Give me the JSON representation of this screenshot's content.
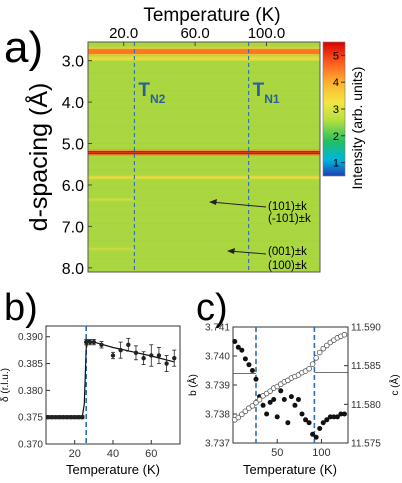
{
  "panel_labels": {
    "a": "a)",
    "b": "b)",
    "c": "c)"
  },
  "chart_data": [
    {
      "type": "heatmap",
      "panel": "a)",
      "title": "",
      "xlabel": "Temperature (K)",
      "ylabel": "d-spacing (Å)",
      "x_ticks": [
        "20.0",
        "60.0",
        "100.0"
      ],
      "x_tick_values": [
        20,
        60,
        100
      ],
      "xlim": [
        0,
        130
      ],
      "y_ticks": [
        "3.0",
        "4.0",
        "5.0",
        "6.0",
        "7.0",
        "8.0"
      ],
      "y_tick_values": [
        3.0,
        4.0,
        5.0,
        6.0,
        7.0,
        8.0
      ],
      "ylim": [
        2.55,
        8.1
      ],
      "colorbar": {
        "label": "Intensity (arb. units)",
        "ticks": [
          "5",
          "4",
          "3",
          "2",
          "1"
        ],
        "tick_values": [
          5,
          4,
          3,
          2,
          1
        ],
        "range": [
          0.5,
          5.5
        ]
      },
      "transition_lines": [
        {
          "x": 26,
          "label": "T",
          "sub": "N2"
        },
        {
          "x": 90,
          "label": "T",
          "sub": "N1"
        }
      ],
      "bands": [
        {
          "d": 2.78,
          "intensity": 3.5,
          "width": 0.12
        },
        {
          "d": 2.95,
          "intensity": 2.6,
          "width": 0.06
        },
        {
          "d": 5.22,
          "intensity": 4.6,
          "width": 0.08
        },
        {
          "d": 5.82,
          "intensity": 2.6,
          "width": 0.05
        },
        {
          "d": 6.35,
          "intensity": 2.3,
          "width": 0.05,
          "x_max": 26
        },
        {
          "d": 7.55,
          "intensity": 2.3,
          "width": 0.05,
          "x_max": 26
        }
      ],
      "background_intensity": 2.1,
      "annotations": [
        {
          "lines": [
            "(101)±k",
            "(-101)±k"
          ],
          "points_to_d": 6.35,
          "points_to_x": 90
        },
        {
          "lines": [
            "(001)±k",
            "(100)±k"
          ],
          "points_to_d": 7.55,
          "points_to_x": 88
        }
      ]
    },
    {
      "type": "scatter",
      "panel": "b)",
      "xlabel": "Temperature (K)",
      "ylabel": "δ (r.l.u.)",
      "xlim": [
        5,
        75
      ],
      "ylim": [
        0.37,
        0.392
      ],
      "x_ticks": [
        "20",
        "40",
        "60"
      ],
      "x_tick_values": [
        20,
        40,
        60
      ],
      "y_ticks": [
        "0.370",
        "0.375",
        "0.380",
        "0.385",
        "0.390"
      ],
      "y_tick_values": [
        0.37,
        0.375,
        0.38,
        0.385,
        0.39
      ],
      "vline_x": 26,
      "series": [
        {
          "x": [
            6,
            8,
            10,
            12,
            14,
            16,
            18,
            20,
            22,
            24,
            26,
            28,
            30,
            34,
            40,
            44,
            48,
            52,
            56,
            60,
            64,
            68,
            72
          ],
          "y": [
            0.375,
            0.375,
            0.375,
            0.375,
            0.375,
            0.375,
            0.375,
            0.375,
            0.375,
            0.375,
            0.389,
            0.389,
            0.389,
            0.3885,
            0.3865,
            0.3875,
            0.3885,
            0.387,
            0.386,
            0.3865,
            0.3865,
            0.385,
            0.386
          ],
          "err": [
            0.0003,
            0.0003,
            0.0003,
            0.0003,
            0.0003,
            0.0003,
            0.0003,
            0.0003,
            0.0003,
            0.0003,
            0.0005,
            0.0005,
            0.0005,
            0.0006,
            0.0006,
            0.0015,
            0.0012,
            0.0013,
            0.0012,
            0.002,
            0.0015,
            0.0015,
            0.0015
          ]
        }
      ],
      "fit": {
        "x": [
          6,
          22,
          24,
          25,
          26,
          27,
          30,
          40,
          50,
          60,
          70,
          72
        ],
        "y": [
          0.3748,
          0.3748,
          0.3752,
          0.3775,
          0.3878,
          0.3893,
          0.389,
          0.388,
          0.3872,
          0.3864,
          0.3855,
          0.3853
        ]
      }
    },
    {
      "type": "scatter",
      "panel": "c)",
      "xlabel": "Temperature (K)",
      "ylabel_left": "b (Å)",
      "ylabel_right": "c (Å)",
      "xlim": [
        0,
        130
      ],
      "ylim_left": [
        3.737,
        3.741
      ],
      "ylim_right": [
        11.575,
        11.59
      ],
      "x_ticks": [
        "50",
        "100"
      ],
      "x_tick_values": [
        50,
        100
      ],
      "y_ticks_left": [
        "3.737",
        "3.738",
        "3.739",
        "3.740",
        "3.741"
      ],
      "y_tick_values_left": [
        3.737,
        3.738,
        3.739,
        3.74,
        3.741
      ],
      "y_ticks_right": [
        "11.575",
        "11.580",
        "11.585",
        "11.590"
      ],
      "y_tick_values_right": [
        11.575,
        11.58,
        11.585,
        11.59
      ],
      "vlines_x": [
        26,
        92
      ],
      "series": [
        {
          "axis": "left",
          "marker": "filled",
          "x": [
            2,
            6,
            10,
            14,
            18,
            22,
            26,
            30,
            34,
            38,
            42,
            46,
            50,
            54,
            58,
            62,
            66,
            70,
            74,
            78,
            82,
            86,
            90,
            94,
            98,
            102,
            106,
            110,
            114,
            118,
            122,
            126
          ],
          "y": [
            3.7405,
            3.7403,
            3.7402,
            3.7399,
            3.7397,
            3.7395,
            3.7392,
            3.7386,
            3.7383,
            3.738,
            3.7384,
            3.7385,
            3.7379,
            3.7388,
            3.7385,
            3.7377,
            3.7386,
            3.7383,
            3.7385,
            3.738,
            3.7378,
            3.7377,
            3.7373,
            3.7372,
            3.7375,
            3.7377,
            3.7378,
            3.7379,
            3.7379,
            3.7379,
            3.738,
            3.738
          ]
        },
        {
          "axis": "right",
          "marker": "open",
          "x": [
            2,
            6,
            10,
            14,
            18,
            22,
            26,
            30,
            34,
            38,
            42,
            46,
            50,
            54,
            58,
            62,
            66,
            70,
            74,
            78,
            82,
            86,
            90,
            94,
            98,
            102,
            106,
            110,
            114,
            118,
            122,
            126
          ],
          "y": [
            11.578,
            11.5783,
            11.5787,
            11.5791,
            11.5795,
            11.5798,
            11.5802,
            11.5806,
            11.5811,
            11.5814,
            11.5817,
            11.5821,
            11.5823,
            11.5826,
            11.5829,
            11.5831,
            11.5834,
            11.5836,
            11.5838,
            11.5841,
            11.5843,
            11.5846,
            11.5852,
            11.586,
            11.5867,
            11.5872,
            11.5876,
            11.588,
            11.5883,
            11.5886,
            11.5888,
            11.589
          ]
        }
      ]
    }
  ]
}
